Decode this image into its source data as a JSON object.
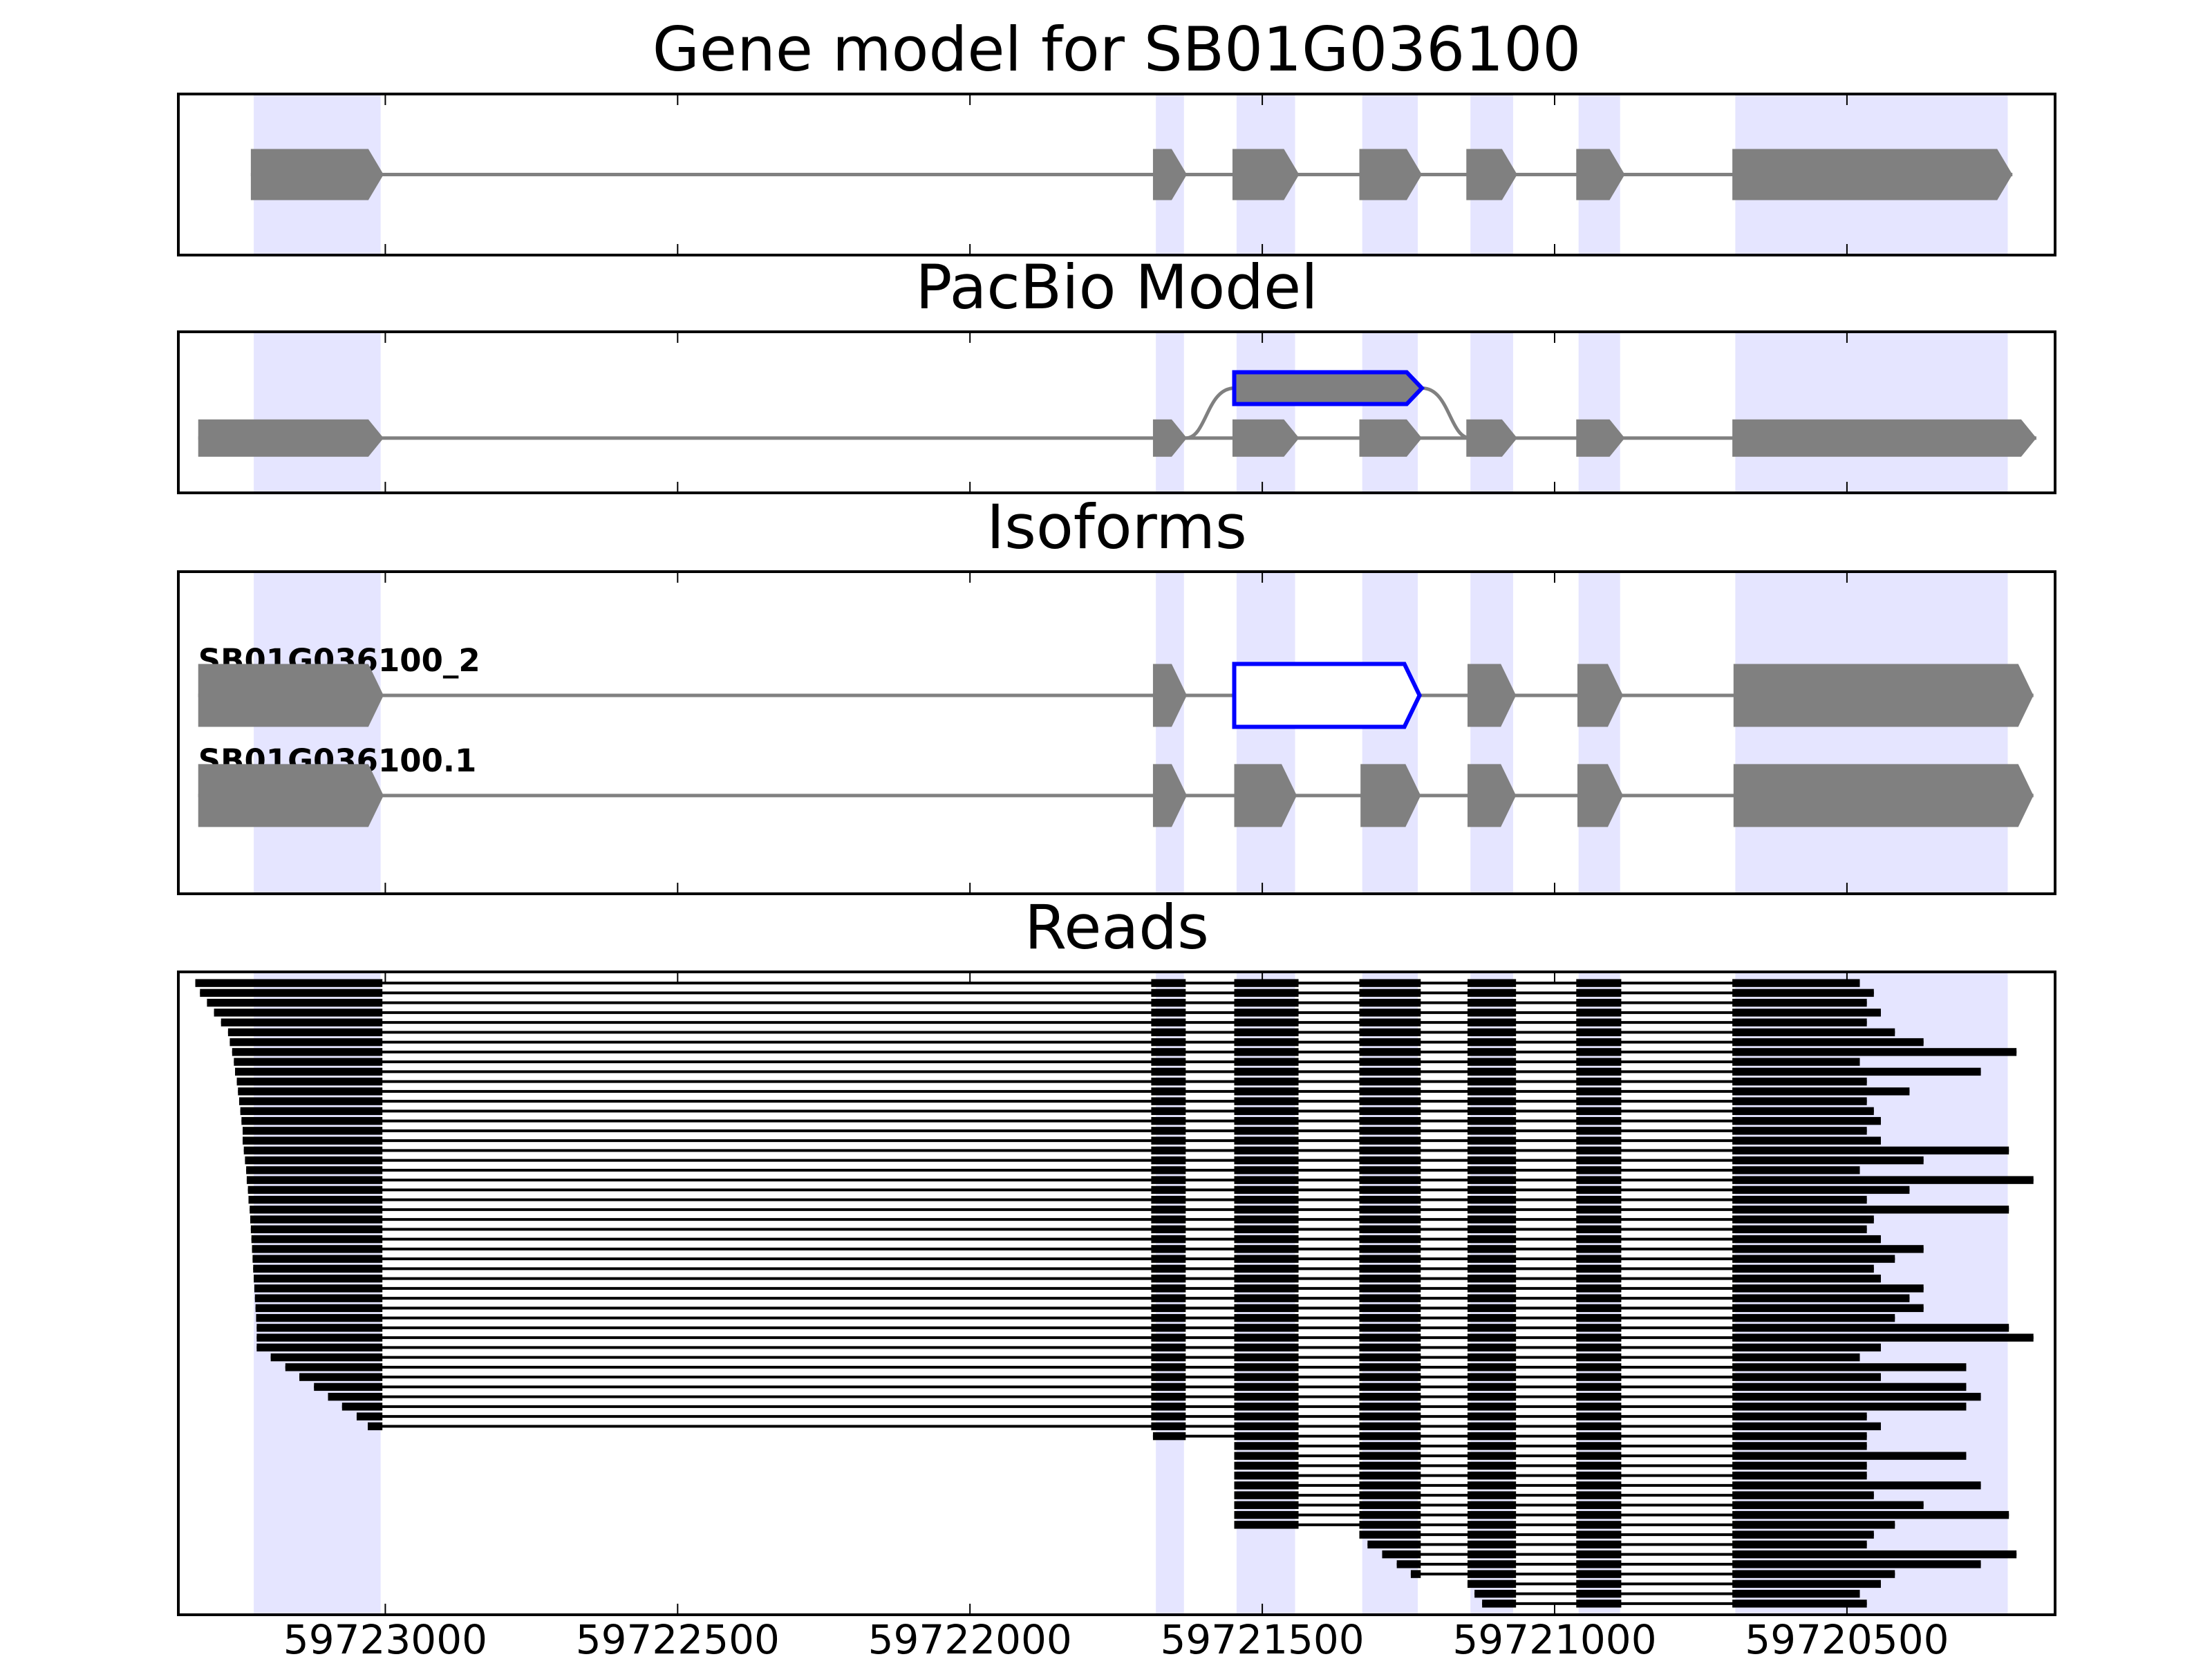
{
  "chart_data": [
    {
      "type": "gene_track",
      "title": "Gene model for SB01G036100",
      "xlim": [
        59723354,
        59720144
      ],
      "xticks": [
        59723000,
        59722500,
        59722000,
        59721500,
        59721000,
        59720500
      ],
      "shade_color": "#e5e5ff",
      "exon_color": "#808080",
      "shaded": [
        [
          59723225,
          59723008
        ],
        [
          59721682,
          59721634
        ],
        [
          59721544,
          59721444
        ],
        [
          59721329,
          59721234
        ],
        [
          59721144,
          59721071
        ],
        [
          59720959,
          59720888
        ],
        [
          59720691,
          59720225
        ]
      ],
      "tracks": [
        {
          "exons": [
            [
              59723230,
              59723003
            ],
            [
              59721687,
              59721629
            ],
            [
              59721551,
              59721437
            ],
            [
              59721334,
              59721227
            ],
            [
              59721151,
              59721064
            ],
            [
              59720963,
              59720880
            ],
            [
              59720696,
              59720217
            ]
          ]
        }
      ]
    },
    {
      "type": "gene_track",
      "title": "PacBio Model",
      "xlim": [
        59723354,
        59720144
      ],
      "xticks": [
        59723000,
        59722500,
        59722000,
        59721500,
        59721000,
        59720500
      ],
      "shade_color": "#e5e5ff",
      "exon_color": "#808080",
      "shaded": [
        [
          59723225,
          59723008
        ],
        [
          59721682,
          59721634
        ],
        [
          59721544,
          59721444
        ],
        [
          59721329,
          59721234
        ],
        [
          59721144,
          59721071
        ],
        [
          59720959,
          59720888
        ],
        [
          59720691,
          59720225
        ]
      ],
      "tracks": [
        {
          "exons": [
            [
              59723320,
              59723003
            ],
            [
              59721687,
              59721629
            ],
            [
              59721551,
              59721437
            ],
            [
              59721334,
              59721227
            ],
            [
              59721151,
              59721064
            ],
            [
              59720963,
              59720880
            ],
            [
              59720696,
              59720176
            ]
          ]
        },
        {
          "exons": [
            [
              59721548,
              59721227
            ]
          ],
          "highlight": {
            "exon": 0,
            "fill": "#808080",
            "stroke": "#0000ff"
          }
        }
      ]
    },
    {
      "type": "gene_track",
      "title": "Isoforms",
      "xlim": [
        59723354,
        59720144
      ],
      "xticks": [
        59723000,
        59722500,
        59722000,
        59721500,
        59721000,
        59720500
      ],
      "shade_color": "#e5e5ff",
      "exon_color": "#808080",
      "shaded": [
        [
          59723225,
          59723008
        ],
        [
          59721682,
          59721634
        ],
        [
          59721544,
          59721444
        ],
        [
          59721329,
          59721234
        ],
        [
          59721144,
          59721071
        ],
        [
          59720959,
          59720888
        ],
        [
          59720691,
          59720225
        ]
      ],
      "tracks": [
        {
          "name": "SB01G036100_2",
          "exons": [
            [
              59723320,
              59723003
            ],
            [
              59721687,
              59721629
            ],
            [
              59721548,
              59721231
            ],
            [
              59721149,
              59721066
            ],
            [
              59720961,
              59720883
            ],
            [
              59720694,
              59720181
            ]
          ],
          "highlight": {
            "exon": 2,
            "fill": "#ffffff",
            "stroke": "#0000ff"
          }
        },
        {
          "name": "SB01G036100.1",
          "exons": [
            [
              59723320,
              59723003
            ],
            [
              59721687,
              59721629
            ],
            [
              59721548,
              59721441
            ],
            [
              59721332,
              59721229
            ],
            [
              59721149,
              59721066
            ],
            [
              59720961,
              59720883
            ],
            [
              59720694,
              59720181
            ]
          ]
        }
      ]
    },
    {
      "type": "reads",
      "title": "Reads",
      "xlim": [
        59723354,
        59720144
      ],
      "xticks": [
        59723000,
        59722500,
        59722000,
        59721500,
        59721000,
        59720500
      ],
      "shade_color": "#e5e5ff",
      "read_color": "#000000",
      "shaded": [
        [
          59723225,
          59723008
        ],
        [
          59721682,
          59721634
        ],
        [
          59721544,
          59721444
        ],
        [
          59721329,
          59721234
        ],
        [
          59721144,
          59721071
        ],
        [
          59720959,
          59720888
        ],
        [
          59720691,
          59720225
        ]
      ],
      "read_exons": [
        [
          59723330,
          59723005
        ],
        [
          59721690,
          59721631
        ],
        [
          59721548,
          59721438
        ],
        [
          59721334,
          59721229
        ],
        [
          59721149,
          59721066
        ],
        [
          59720963,
          59720886
        ],
        [
          59720696,
          59720170
        ]
      ],
      "reads": [
        [
          59723325,
          59720478
        ],
        [
          59723317,
          59720454
        ],
        [
          59723305,
          59720466
        ],
        [
          59723293,
          59720442
        ],
        [
          59723281,
          59720466
        ],
        [
          59723269,
          59720418
        ],
        [
          59723266,
          59720369
        ],
        [
          59723262,
          59720210
        ],
        [
          59723259,
          59720478
        ],
        [
          59723257,
          59720271
        ],
        [
          59723254,
          59720466
        ],
        [
          59723252,
          59720393
        ],
        [
          59723250,
          59720466
        ],
        [
          59723248,
          59720454
        ],
        [
          59723246,
          59720442
        ],
        [
          59723244,
          59720466
        ],
        [
          59723244,
          59720442
        ],
        [
          59723242,
          59720223
        ],
        [
          59723240,
          59720369
        ],
        [
          59723238,
          59720478
        ],
        [
          59723237,
          59720181
        ],
        [
          59723235,
          59720393
        ],
        [
          59723234,
          59720466
        ],
        [
          59723232,
          59720223
        ],
        [
          59723231,
          59720454
        ],
        [
          59723230,
          59720466
        ],
        [
          59723229,
          59720442
        ],
        [
          59723228,
          59720369
        ],
        [
          59723227,
          59720418
        ],
        [
          59723226,
          59720454
        ],
        [
          59723225,
          59720442
        ],
        [
          59723224,
          59720369
        ],
        [
          59723223,
          59720393
        ],
        [
          59723222,
          59720369
        ],
        [
          59723221,
          59720418
        ],
        [
          59723220,
          59720223
        ],
        [
          59723220,
          59720181
        ],
        [
          59723220,
          59720442
        ],
        [
          59723196,
          59720478
        ],
        [
          59723171,
          59720296
        ],
        [
          59723147,
          59720442
        ],
        [
          59723122,
          59720296
        ],
        [
          59723098,
          59720271
        ],
        [
          59723074,
          59720296
        ],
        [
          59723049,
          59720466
        ],
        [
          59723030,
          59720442
        ],
        [
          59721687,
          59720466
        ],
        [
          59721548,
          59720466
        ],
        [
          59721548,
          59720296
        ],
        [
          59721548,
          59720466
        ],
        [
          59721548,
          59720466
        ],
        [
          59721548,
          59720271
        ],
        [
          59721548,
          59720454
        ],
        [
          59721548,
          59720369
        ],
        [
          59721548,
          59720223
        ],
        [
          59721548,
          59720418
        ],
        [
          59721334,
          59720454
        ],
        [
          59721320,
          59720466
        ],
        [
          59721295,
          59720210
        ],
        [
          59721270,
          59720271
        ],
        [
          59721246,
          59720418
        ],
        [
          59721149,
          59720442
        ],
        [
          59721137,
          59720478
        ],
        [
          59721124,
          59720466
        ]
      ]
    }
  ]
}
